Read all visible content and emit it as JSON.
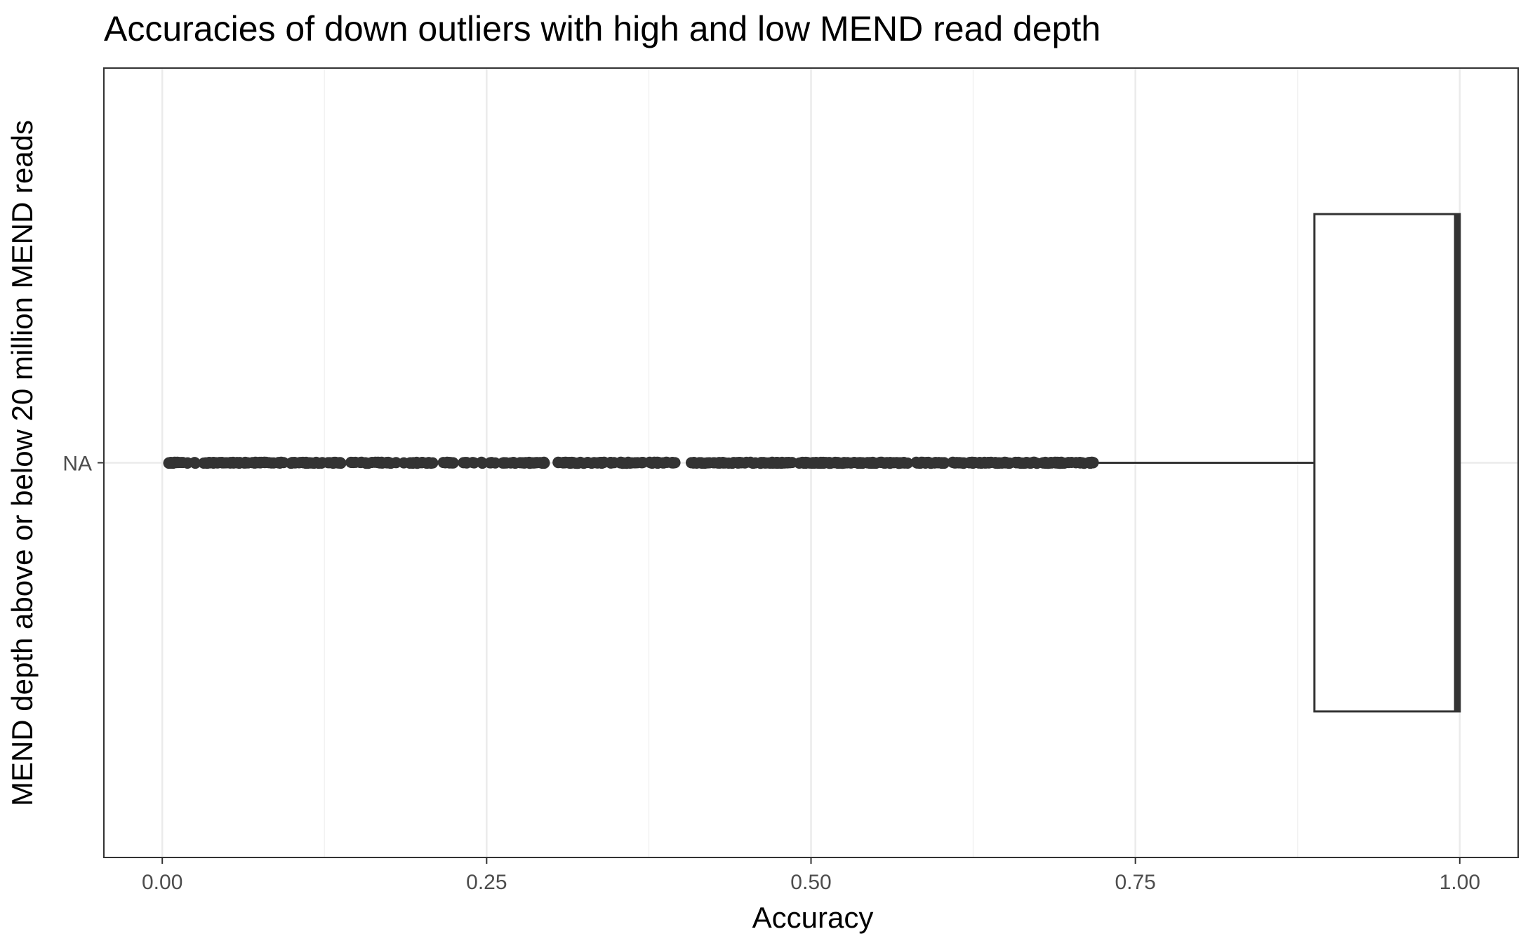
{
  "chart_data": {
    "type": "boxplot",
    "orientation": "horizontal",
    "title": "Accuracies of down outliers with high and low MEND read depth",
    "xlabel": "Accuracy",
    "ylabel": "MEND depth above or below 20 million MEND reads",
    "xlim": [
      -0.045,
      1.045
    ],
    "x_ticks": [
      0.0,
      0.25,
      0.5,
      0.75,
      1.0
    ],
    "x_tick_labels": [
      "0.00",
      "0.25",
      "0.50",
      "0.75",
      "1.00"
    ],
    "categories": [
      "NA"
    ],
    "grid": true,
    "legend": "none",
    "boxes": [
      {
        "category": "NA",
        "q1": 0.888,
        "median": 0.998,
        "q3": 1.0,
        "whisker_low": 0.72,
        "whisker_high": 1.0,
        "outlier_range": [
          0.005,
          0.72
        ]
      }
    ],
    "colors": {
      "box_line": "#333333",
      "points": "#333333",
      "grid_major": "#ebebeb",
      "grid_minor": "#f2f2f2",
      "panel_border": "#333333"
    }
  }
}
